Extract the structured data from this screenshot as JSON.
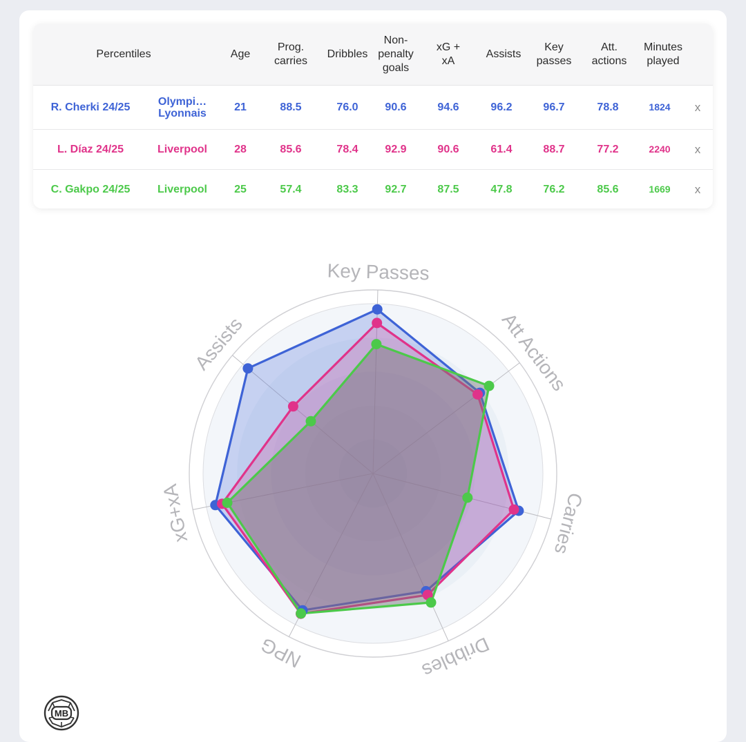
{
  "table": {
    "headers": {
      "percentiles": "Percentiles",
      "age": "Age",
      "prog_carries": "Prog.\ncarries",
      "dribbles": "Dribbles",
      "npg": "Non-\npenalty\ngoals",
      "xg_xa": "xG +\nxA",
      "assists": "Assists",
      "key_passes": "Key\npasses",
      "att_actions": "Att.\nactions",
      "minutes": "Minutes\nplayed"
    },
    "rows": [
      {
        "player": "R. Cherki 24/25",
        "club": "Olympi…\nLyonnais",
        "age": "21",
        "prog_carries": "88.5",
        "dribbles": "76.0",
        "npg": "90.6",
        "xg_xa": "94.6",
        "assists": "96.2",
        "key_passes": "96.7",
        "att_actions": "78.8",
        "minutes": "1824",
        "remove": "x",
        "color": "#3e63d6"
      },
      {
        "player": "L. Díaz 24/25",
        "club": "Liverpool",
        "age": "28",
        "prog_carries": "85.6",
        "dribbles": "78.4",
        "npg": "92.9",
        "xg_xa": "90.6",
        "assists": "61.4",
        "key_passes": "88.7",
        "att_actions": "77.2",
        "minutes": "2240",
        "remove": "x",
        "color": "#e0338a"
      },
      {
        "player": "C. Gakpo 24/25",
        "club": "Liverpool",
        "age": "25",
        "prog_carries": "57.4",
        "dribbles": "83.3",
        "npg": "92.7",
        "xg_xa": "87.5",
        "assists": "47.8",
        "key_passes": "76.2",
        "att_actions": "85.6",
        "minutes": "1669",
        "remove": "x",
        "color": "#4cc94a"
      }
    ]
  },
  "chart_data": {
    "type": "radar",
    "axes": [
      "Key Passes",
      "Att Actions",
      "Carries",
      "Dribbles",
      "NPG",
      "xG+xA",
      "Assists"
    ],
    "range": [
      0,
      100
    ],
    "series": [
      {
        "name": "R. Cherki 24/25",
        "color": "#3e63d6",
        "values": [
          96.7,
          78.8,
          88.5,
          76.0,
          90.6,
          94.6,
          96.2
        ]
      },
      {
        "name": "L. Díaz 24/25",
        "color": "#e0338a",
        "values": [
          88.7,
          77.2,
          85.6,
          78.4,
          92.9,
          90.6,
          61.4
        ]
      },
      {
        "name": "C. Gakpo 24/25",
        "color": "#4cc94a",
        "values": [
          76.2,
          85.6,
          57.4,
          83.3,
          92.7,
          87.5,
          47.8
        ]
      }
    ]
  },
  "logo": {
    "text": "MB"
  }
}
